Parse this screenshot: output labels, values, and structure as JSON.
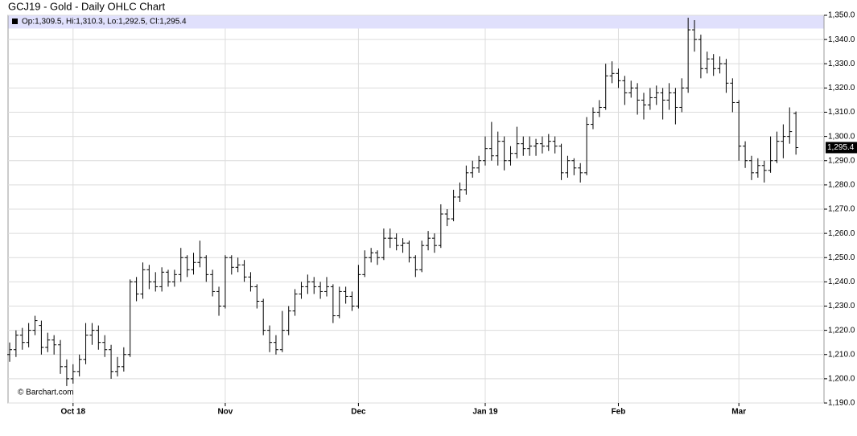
{
  "chart_data": {
    "type": "ohlc",
    "title": "GCJ19 - Gold - Daily OHLC Chart",
    "legend_text": "Op:1,309.5, Hi:1,310.3, Lo:1,292.5, Cl:1,295.4",
    "watermark": "© Barchart.com",
    "color": "#000000",
    "legend_color": "#e0e0fc",
    "grid": true,
    "categories": [
      null,
      null,
      null,
      null,
      null,
      null,
      null,
      null,
      null,
      null,
      "Oct 18",
      null,
      null,
      null,
      null,
      null,
      null,
      null,
      null,
      null,
      null,
      null,
      null,
      null,
      null,
      null,
      null,
      null,
      null,
      null,
      null,
      null,
      null,
      null,
      "Nov",
      null,
      null,
      null,
      null,
      null,
      null,
      null,
      null,
      null,
      null,
      null,
      null,
      null,
      null,
      null,
      null,
      null,
      null,
      null,
      null,
      "Dec",
      null,
      null,
      null,
      null,
      null,
      null,
      null,
      null,
      null,
      null,
      null,
      null,
      null,
      null,
      null,
      null,
      null,
      null,
      null,
      "Jan 19",
      null,
      null,
      null,
      null,
      null,
      null,
      null,
      null,
      null,
      null,
      null,
      null,
      null,
      null,
      null,
      null,
      null,
      null,
      null,
      null,
      "Feb",
      null,
      null,
      null,
      null,
      null,
      null,
      null,
      null,
      null,
      null,
      null,
      null,
      null,
      null,
      null,
      null,
      null,
      null,
      "Mar",
      null,
      null,
      null,
      null,
      null,
      null,
      null,
      null,
      null
    ],
    "open": [
      1210,
      1212,
      1218,
      1215,
      1220,
      1222,
      1213,
      1216,
      1214,
      1205,
      1200,
      1203,
      1208,
      1218,
      1220,
      1215,
      1212,
      1203,
      1205,
      1210,
      1240,
      1235,
      1245,
      1240,
      1238,
      1244,
      1240,
      1243,
      1250,
      1245,
      1248,
      1250,
      1243,
      1236,
      1230,
      1250,
      1246,
      1247,
      1242,
      1238,
      1232,
      1220,
      1215,
      1212,
      1220,
      1228,
      1235,
      1238,
      1240,
      1238,
      1236,
      1238,
      1226,
      1236,
      1234,
      1230,
      1243,
      1250,
      1252,
      1250,
      1258,
      1258,
      1255,
      1256,
      1250,
      1245,
      1255,
      1258,
      1255,
      1268,
      1266,
      1275,
      1278,
      1285,
      1287,
      1290,
      1295,
      1292,
      1298,
      1290,
      1293,
      1297,
      1295,
      1296,
      1297,
      1296,
      1298,
      1296,
      1285,
      1290,
      1287,
      1285,
      1305,
      1310,
      1312,
      1325,
      1326,
      1323,
      1318,
      1320,
      1315,
      1313,
      1316,
      1318,
      1315,
      1318,
      1312,
      1320,
      1344,
      1340,
      1328,
      1332,
      1328,
      1330,
      1322,
      1314,
      1296,
      1290,
      1285,
      1288,
      1286,
      1290,
      1298,
      1300,
      1309.5
    ],
    "high": [
      1215,
      1220,
      1221,
      1223,
      1226,
      1224,
      1219,
      1218,
      1216,
      1208,
      1206,
      1210,
      1223,
      1223,
      1222,
      1218,
      1214,
      1209,
      1213,
      1241,
      1242,
      1248,
      1247,
      1244,
      1246,
      1245,
      1245,
      1254,
      1251,
      1252,
      1257,
      1251,
      1245,
      1238,
      1251,
      1251,
      1250,
      1249,
      1244,
      1239,
      1233,
      1222,
      1218,
      1228,
      1230,
      1237,
      1240,
      1243,
      1242,
      1240,
      1242,
      1239,
      1238,
      1238,
      1236,
      1247,
      1253,
      1254,
      1253,
      1262,
      1262,
      1260,
      1258,
      1257,
      1251,
      1257,
      1261,
      1260,
      1272,
      1270,
      1278,
      1281,
      1288,
      1290,
      1292,
      1300,
      1306,
      1302,
      1300,
      1296,
      1304,
      1300,
      1300,
      1299,
      1300,
      1301,
      1300,
      1297,
      1292,
      1291,
      1289,
      1308,
      1312,
      1315,
      1330,
      1331,
      1328,
      1325,
      1323,
      1322,
      1318,
      1320,
      1321,
      1320,
      1322,
      1320,
      1324,
      1349,
      1348,
      1342,
      1335,
      1334,
      1333,
      1332,
      1324,
      1315,
      1298,
      1292,
      1291,
      1290,
      1300,
      1302,
      1305,
      1312,
      1310.3
    ],
    "low": [
      1207,
      1209,
      1212,
      1213,
      1218,
      1210,
      1211,
      1210,
      1202,
      1197,
      1198,
      1201,
      1206,
      1214,
      1212,
      1209,
      1200,
      1201,
      1203,
      1209,
      1232,
      1233,
      1237,
      1236,
      1236,
      1238,
      1238,
      1240,
      1242,
      1243,
      1246,
      1240,
      1234,
      1226,
      1229,
      1243,
      1244,
      1240,
      1236,
      1229,
      1218,
      1211,
      1210,
      1211,
      1218,
      1226,
      1233,
      1235,
      1235,
      1233,
      1234,
      1223,
      1225,
      1231,
      1228,
      1229,
      1242,
      1248,
      1247,
      1249,
      1254,
      1253,
      1252,
      1248,
      1242,
      1244,
      1253,
      1252,
      1254,
      1263,
      1265,
      1273,
      1276,
      1283,
      1285,
      1288,
      1290,
      1288,
      1286,
      1288,
      1291,
      1292,
      1292,
      1292,
      1293,
      1294,
      1293,
      1282,
      1283,
      1284,
      1281,
      1284,
      1303,
      1308,
      1311,
      1322,
      1320,
      1313,
      1316,
      1309,
      1307,
      1311,
      1313,
      1307,
      1311,
      1305,
      1310,
      1318,
      1335,
      1324,
      1326,
      1325,
      1326,
      1318,
      1310,
      1290,
      1287,
      1282,
      1283,
      1281,
      1285,
      1289,
      1291,
      1297,
      1292.5
    ],
    "close": [
      1212,
      1218,
      1215,
      1220,
      1224,
      1213,
      1216,
      1214,
      1205,
      1200,
      1203,
      1208,
      1218,
      1220,
      1215,
      1212,
      1203,
      1205,
      1210,
      1240,
      1235,
      1245,
      1240,
      1238,
      1244,
      1240,
      1243,
      1250,
      1245,
      1248,
      1250,
      1243,
      1236,
      1230,
      1250,
      1246,
      1247,
      1242,
      1238,
      1232,
      1220,
      1215,
      1212,
      1220,
      1228,
      1235,
      1238,
      1240,
      1238,
      1236,
      1238,
      1226,
      1236,
      1234,
      1230,
      1243,
      1250,
      1252,
      1250,
      1258,
      1258,
      1255,
      1256,
      1250,
      1245,
      1255,
      1258,
      1255,
      1268,
      1266,
      1275,
      1278,
      1285,
      1287,
      1290,
      1295,
      1292,
      1298,
      1290,
      1293,
      1297,
      1295,
      1296,
      1297,
      1296,
      1298,
      1296,
      1285,
      1290,
      1287,
      1285,
      1305,
      1310,
      1312,
      1325,
      1326,
      1323,
      1318,
      1320,
      1315,
      1313,
      1316,
      1318,
      1315,
      1318,
      1312,
      1320,
      1344,
      1340,
      1328,
      1332,
      1328,
      1330,
      1322,
      1314,
      1296,
      1290,
      1285,
      1288,
      1286,
      1290,
      1298,
      1300,
      1302,
      1295.4
    ],
    "last_price": {
      "value": 1295.4,
      "label": "1,295.4"
    },
    "ylim": [
      1190,
      1350
    ],
    "yticks": [
      {
        "value": 1190,
        "label": "1,190.0"
      },
      {
        "value": 1200,
        "label": "1,200.0"
      },
      {
        "value": 1210,
        "label": "1,210.0"
      },
      {
        "value": 1220,
        "label": "1,220.0"
      },
      {
        "value": 1230,
        "label": "1,230.0"
      },
      {
        "value": 1240,
        "label": "1,240.0"
      },
      {
        "value": 1250,
        "label": "1,250.0"
      },
      {
        "value": 1260,
        "label": "1,260.0"
      },
      {
        "value": 1270,
        "label": "1,270.0"
      },
      {
        "value": 1280,
        "label": "1,280.0"
      },
      {
        "value": 1290,
        "label": "1,290.0"
      },
      {
        "value": 1300,
        "label": "1,300.0"
      },
      {
        "value": 1310,
        "label": "1,310.0"
      },
      {
        "value": 1320,
        "label": "1,320.0"
      },
      {
        "value": 1330,
        "label": "1,330.0"
      },
      {
        "value": 1340,
        "label": "1,340.0"
      },
      {
        "value": 1350,
        "label": "1,350.0"
      }
    ]
  }
}
